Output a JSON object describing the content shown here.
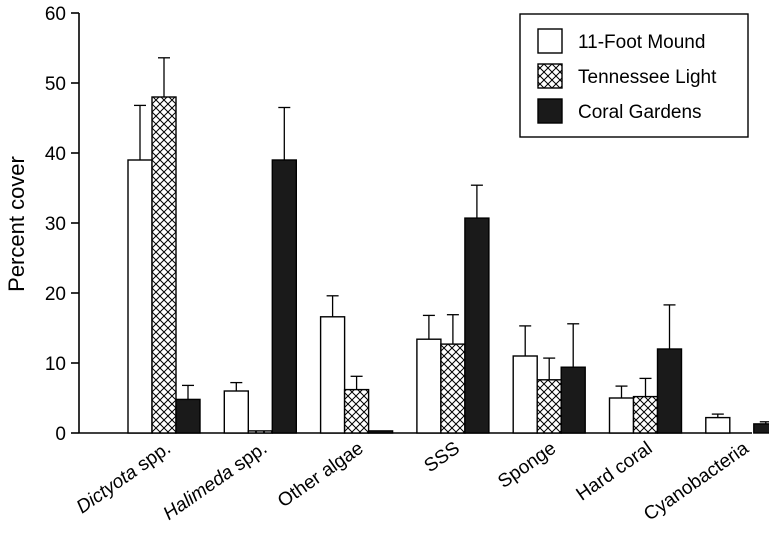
{
  "chart_data": {
    "type": "bar",
    "title": "",
    "xlabel": "",
    "ylabel": "Percent cover",
    "ylim": [
      0,
      60
    ],
    "yticks": [
      0,
      10,
      20,
      30,
      40,
      50,
      60
    ],
    "grid": false,
    "legend_position": "top-right",
    "categories": [
      "Dictyota spp.",
      "Halimeda spp.",
      "Other algae",
      "SSS",
      "Sponge",
      "Hard coral",
      "Cyanobacteria"
    ],
    "italic_categories": [
      "Dictyota",
      "Halimeda"
    ],
    "series": [
      {
        "name": "11-Foot Mound",
        "fill": "white",
        "color": "#ffffff",
        "values": [
          39,
          6,
          16.6,
          13.4,
          11,
          5,
          2.2
        ],
        "errors": [
          7.8,
          1.2,
          3,
          3.4,
          4.3,
          1.7,
          0.5
        ]
      },
      {
        "name": "Tennessee Light",
        "fill": "crosshatch",
        "color": "#ffffff",
        "values": [
          48,
          0.3,
          6.2,
          12.7,
          7.6,
          5.2,
          0
        ],
        "errors": [
          5.6,
          0,
          1.9,
          4.2,
          3.1,
          2.6,
          0
        ]
      },
      {
        "name": "Coral Gardens",
        "fill": "solid",
        "color": "#1a1a1a",
        "values": [
          4.8,
          39,
          0.3,
          30.7,
          9.4,
          12,
          1.3
        ],
        "errors": [
          2,
          7.5,
          0,
          4.7,
          6.2,
          6.3,
          0.3
        ]
      }
    ]
  }
}
